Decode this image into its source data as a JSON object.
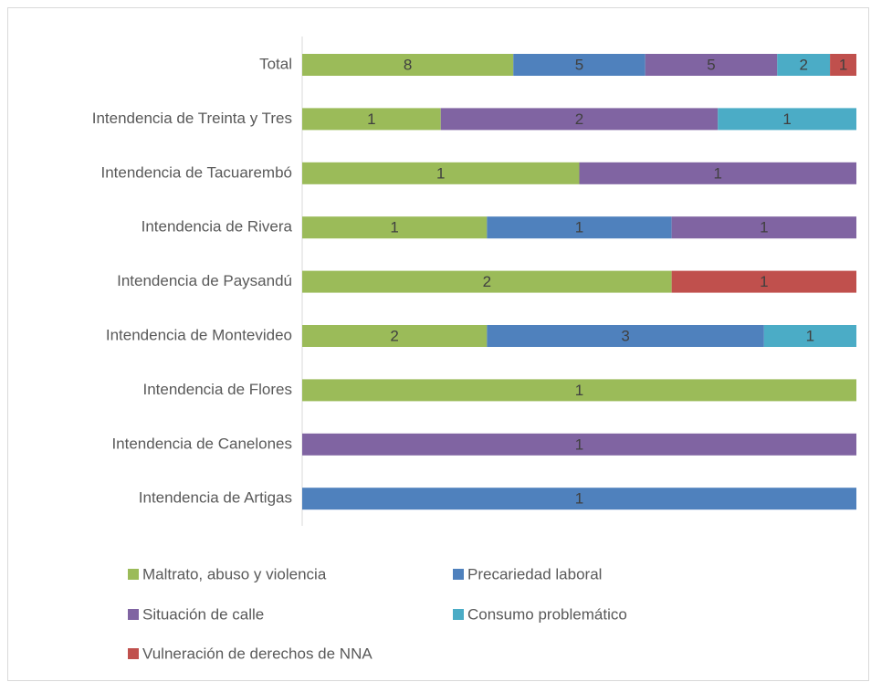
{
  "chart_data": {
    "type": "bar",
    "orientation": "horizontal",
    "stacked": true,
    "percent": true,
    "categories": [
      "Total",
      "Intendencia de Treinta y Tres",
      "Intendencia de Tacuarembó",
      "Intendencia de Rivera",
      "Intendencia de Paysandú",
      "Intendencia de Montevideo",
      "Intendencia de Flores",
      "Intendencia de Canelones",
      "Intendencia de Artigas"
    ],
    "series": [
      {
        "name": "Maltrato, abuso y violencia",
        "color": "#9bbb59",
        "values": [
          8,
          1,
          1,
          1,
          2,
          2,
          1,
          null,
          null
        ]
      },
      {
        "name": "Precariedad laboral",
        "color": "#4f81bd",
        "values": [
          5,
          null,
          null,
          1,
          null,
          3,
          null,
          null,
          1
        ]
      },
      {
        "name": "Situación de calle",
        "color": "#8064a2",
        "values": [
          5,
          2,
          1,
          1,
          null,
          null,
          null,
          1,
          null
        ]
      },
      {
        "name": "Consumo problemático",
        "color": "#4bacc6",
        "values": [
          2,
          1,
          null,
          null,
          null,
          1,
          null,
          null,
          null
        ]
      },
      {
        "name": "Vulneración de derechos de NNA",
        "color": "#c0504d",
        "values": [
          1,
          null,
          null,
          null,
          1,
          null,
          null,
          null,
          null
        ]
      }
    ],
    "legend": "bottom"
  }
}
